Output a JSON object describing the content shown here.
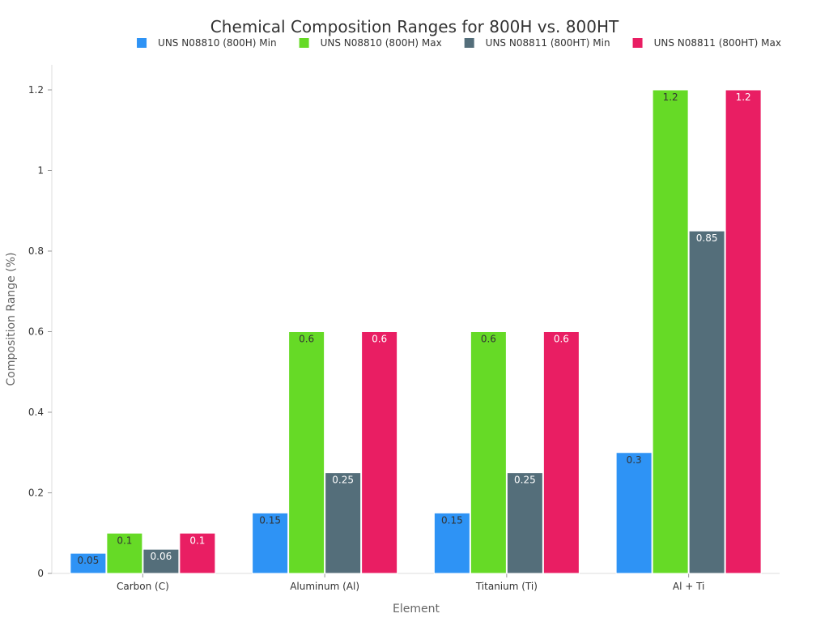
{
  "chart_data": {
    "type": "bar",
    "title": "Chemical Composition Ranges for 800H vs. 800HT",
    "xlabel": "Element",
    "ylabel": "Composition Range (%)",
    "ylim": [
      0,
      1.25
    ],
    "yticks": [
      0,
      0.2,
      0.4,
      0.6,
      0.8,
      1,
      1.2
    ],
    "ytick_labels": [
      "0",
      "0.2",
      "0.4",
      "0.6",
      "0.8",
      "1",
      "1.2"
    ],
    "grid": false,
    "legend_position": "top",
    "categories": [
      "Carbon (C)",
      "Aluminum (Al)",
      "Titanium (Ti)",
      "Al + Ti"
    ],
    "series": [
      {
        "name": "UNS N08810 (800H) Min",
        "color": "#2E93F5",
        "label_color": "#333333",
        "values": [
          0.05,
          0.15,
          0.15,
          0.3
        ],
        "value_labels": [
          "0.05",
          "0.15",
          "0.15",
          "0.3"
        ]
      },
      {
        "name": "UNS N08810 (800H) Max",
        "color": "#66DA26",
        "label_color": "#333333",
        "values": [
          0.1,
          0.6,
          0.6,
          1.2
        ],
        "value_labels": [
          "0.1",
          "0.6",
          "0.6",
          "1.2"
        ]
      },
      {
        "name": "UNS N08811 (800HT) Min",
        "color": "#546E7A",
        "label_color": "#ffffff",
        "values": [
          0.06,
          0.25,
          0.25,
          0.85
        ],
        "value_labels": [
          "0.06",
          "0.25",
          "0.25",
          "0.85"
        ]
      },
      {
        "name": "UNS N08811 (800HT) Max",
        "color": "#E91E63",
        "label_color": "#ffffff",
        "values": [
          0.1,
          0.6,
          0.6,
          1.2
        ],
        "value_labels": [
          "0.1",
          "0.6",
          "0.6",
          "1.2"
        ]
      }
    ]
  }
}
